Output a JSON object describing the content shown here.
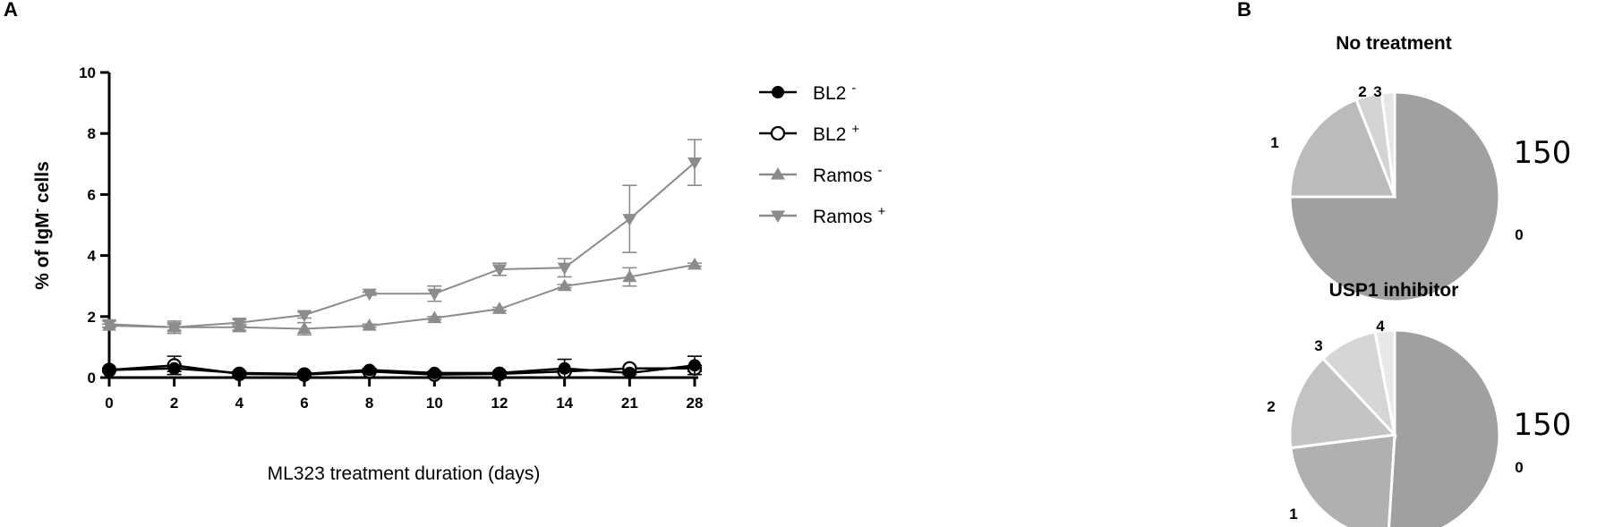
{
  "panels": {
    "a": "A",
    "b": "B"
  },
  "chart_data": [
    {
      "type": "line",
      "xlabel": "ML323 treatment duration (days)",
      "ylabel": {
        "pre": "% of IgM",
        "sup": "-",
        "post": " cells"
      },
      "ylim": [
        0,
        10
      ],
      "yticks": [
        "0",
        "2",
        "4",
        "6",
        "8",
        "10"
      ],
      "categories": [
        "0",
        "2",
        "4",
        "6",
        "8",
        "10",
        "12",
        "14",
        "21",
        "28"
      ],
      "grid": false,
      "legend_position": "right",
      "series": [
        {
          "name": "BL2",
          "sup": "-",
          "marker": "circle-filled",
          "color": "#000000",
          "values": [
            0.25,
            0.3,
            0.15,
            0.12,
            0.25,
            0.15,
            0.15,
            0.3,
            0.15,
            0.4
          ],
          "errors": [
            0.05,
            0.1,
            0.05,
            0.05,
            0.05,
            0.05,
            0.05,
            0.3,
            0.05,
            0.3
          ]
        },
        {
          "name": "BL2",
          "sup": "+",
          "marker": "circle-open",
          "color": "#000000",
          "values": [
            0.25,
            0.4,
            0.12,
            0.1,
            0.2,
            0.1,
            0.12,
            0.2,
            0.3,
            0.3
          ],
          "errors": [
            0.05,
            0.3,
            0.05,
            0.05,
            0.05,
            0.05,
            0.05,
            0.05,
            0.05,
            0.1
          ]
        },
        {
          "name": "Ramos",
          "sup": "-",
          "marker": "triangle-up",
          "color": "#8c8c8c",
          "values": [
            1.7,
            1.65,
            1.65,
            1.6,
            1.7,
            1.95,
            2.25,
            3.0,
            3.3,
            3.7
          ],
          "errors": [
            0.05,
            0.1,
            0.1,
            0.2,
            0.05,
            0.05,
            0.05,
            0.05,
            0.3,
            0.05
          ]
        },
        {
          "name": "Ramos",
          "sup": "+",
          "marker": "triangle-down",
          "color": "#8c8c8c",
          "values": [
            1.75,
            1.65,
            1.8,
            2.05,
            2.75,
            2.75,
            3.55,
            3.6,
            5.2,
            7.05
          ],
          "errors": [
            0.1,
            0.2,
            0.1,
            0.1,
            0.05,
            0.25,
            0.2,
            0.3,
            1.1,
            0.75
          ]
        }
      ]
    },
    {
      "type": "pie",
      "title": "No treatment",
      "count": "150",
      "labels": [
        "0",
        "1",
        "2",
        "3"
      ],
      "values": [
        75,
        19,
        4,
        2
      ],
      "colors": [
        "#a0a0a0",
        "#bbbbbb",
        "#d3d3d3",
        "#e6e6e6"
      ]
    },
    {
      "type": "pie",
      "title": "USP1 inhibitor",
      "count": "150",
      "labels": [
        "0",
        "1",
        "2",
        "3",
        "4"
      ],
      "values": [
        51,
        22,
        15,
        9,
        3
      ],
      "colors": [
        "#a0a0a0",
        "#b0b0b0",
        "#c3c3c3",
        "#d6d6d6",
        "#e8e8e8"
      ]
    }
  ]
}
